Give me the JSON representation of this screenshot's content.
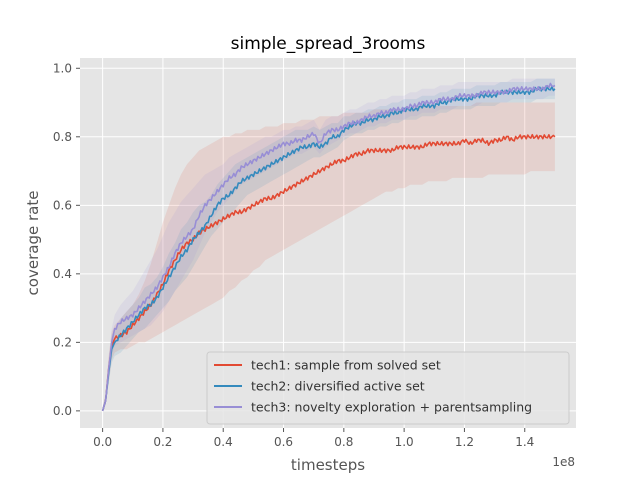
{
  "chart_data": {
    "type": "line",
    "title": "simple_spread_3rooms",
    "xlabel": "timesteps",
    "ylabel": "coverage rate",
    "x_offset_label": "1e8",
    "xlim": [
      -0.075,
      1.57
    ],
    "ylim": [
      -0.05,
      1.03
    ],
    "x_ticks": [
      0.0,
      0.2,
      0.4,
      0.6,
      0.8,
      1.0,
      1.2,
      1.4
    ],
    "x_tick_labels": [
      "0.0",
      "0.2",
      "0.4",
      "0.6",
      "0.8",
      "1.0",
      "1.2",
      "1.4"
    ],
    "y_ticks": [
      0.0,
      0.2,
      0.4,
      0.6,
      0.8,
      1.0
    ],
    "y_tick_labels": [
      "0.0",
      "0.2",
      "0.4",
      "0.6",
      "0.8",
      "1.0"
    ],
    "grid": true,
    "legend_position": "lower-right",
    "style": "ggplot",
    "series": [
      {
        "name": "tech1: sample from solved set",
        "color": "#E24A33",
        "x": [
          0.0,
          0.01,
          0.02,
          0.03,
          0.04,
          0.06,
          0.08,
          0.1,
          0.12,
          0.14,
          0.16,
          0.18,
          0.2,
          0.22,
          0.24,
          0.26,
          0.28,
          0.3,
          0.32,
          0.34,
          0.36,
          0.38,
          0.4,
          0.42,
          0.44,
          0.46,
          0.48,
          0.5,
          0.52,
          0.54,
          0.56,
          0.58,
          0.6,
          0.62,
          0.64,
          0.66,
          0.68,
          0.7,
          0.72,
          0.74,
          0.76,
          0.78,
          0.8,
          0.82,
          0.84,
          0.86,
          0.88,
          0.9,
          0.92,
          0.94,
          0.96,
          0.98,
          1.0,
          1.02,
          1.04,
          1.06,
          1.08,
          1.1,
          1.12,
          1.14,
          1.16,
          1.18,
          1.2,
          1.22,
          1.24,
          1.26,
          1.28,
          1.3,
          1.32,
          1.34,
          1.36,
          1.38,
          1.4,
          1.42,
          1.44,
          1.46,
          1.48,
          1.5
        ],
        "y": [
          0.0,
          0.03,
          0.12,
          0.19,
          0.21,
          0.22,
          0.23,
          0.25,
          0.27,
          0.29,
          0.31,
          0.34,
          0.37,
          0.41,
          0.44,
          0.47,
          0.49,
          0.5,
          0.52,
          0.53,
          0.54,
          0.55,
          0.56,
          0.57,
          0.58,
          0.58,
          0.59,
          0.6,
          0.61,
          0.62,
          0.62,
          0.63,
          0.64,
          0.65,
          0.66,
          0.67,
          0.68,
          0.69,
          0.7,
          0.71,
          0.72,
          0.73,
          0.73,
          0.74,
          0.75,
          0.75,
          0.76,
          0.76,
          0.76,
          0.76,
          0.76,
          0.77,
          0.77,
          0.77,
          0.77,
          0.77,
          0.78,
          0.78,
          0.78,
          0.78,
          0.78,
          0.78,
          0.79,
          0.78,
          0.79,
          0.79,
          0.78,
          0.79,
          0.79,
          0.8,
          0.79,
          0.8,
          0.8,
          0.8,
          0.8,
          0.8,
          0.8,
          0.8
        ],
        "band": {
          "lower": [
            0.0,
            0.02,
            0.08,
            0.15,
            0.17,
            0.18,
            0.18,
            0.19,
            0.2,
            0.2,
            0.21,
            0.22,
            0.23,
            0.24,
            0.25,
            0.26,
            0.27,
            0.28,
            0.29,
            0.3,
            0.31,
            0.32,
            0.33,
            0.35,
            0.36,
            0.38,
            0.39,
            0.41,
            0.42,
            0.44,
            0.45,
            0.46,
            0.47,
            0.48,
            0.49,
            0.5,
            0.51,
            0.52,
            0.53,
            0.54,
            0.55,
            0.56,
            0.57,
            0.58,
            0.59,
            0.6,
            0.61,
            0.62,
            0.63,
            0.64,
            0.64,
            0.65,
            0.65,
            0.66,
            0.66,
            0.66,
            0.67,
            0.67,
            0.67,
            0.67,
            0.68,
            0.68,
            0.68,
            0.68,
            0.68,
            0.68,
            0.69,
            0.69,
            0.69,
            0.69,
            0.69,
            0.69,
            0.69,
            0.7,
            0.7,
            0.7,
            0.7,
            0.7
          ],
          "upper": [
            0.01,
            0.05,
            0.16,
            0.23,
            0.25,
            0.27,
            0.29,
            0.31,
            0.34,
            0.38,
            0.43,
            0.49,
            0.55,
            0.6,
            0.65,
            0.69,
            0.72,
            0.74,
            0.76,
            0.77,
            0.78,
            0.79,
            0.8,
            0.8,
            0.81,
            0.81,
            0.82,
            0.82,
            0.82,
            0.83,
            0.83,
            0.83,
            0.84,
            0.84,
            0.84,
            0.85,
            0.85,
            0.85,
            0.86,
            0.86,
            0.86,
            0.86,
            0.87,
            0.87,
            0.87,
            0.87,
            0.87,
            0.88,
            0.88,
            0.88,
            0.88,
            0.88,
            0.88,
            0.88,
            0.89,
            0.89,
            0.89,
            0.89,
            0.89,
            0.89,
            0.89,
            0.89,
            0.89,
            0.89,
            0.9,
            0.9,
            0.9,
            0.9,
            0.9,
            0.9,
            0.9,
            0.9,
            0.9,
            0.9,
            0.9,
            0.9,
            0.9,
            0.9
          ]
        }
      },
      {
        "name": "tech2: diversified active set",
        "color": "#348ABD",
        "x": [
          0.0,
          0.01,
          0.02,
          0.03,
          0.04,
          0.06,
          0.08,
          0.1,
          0.12,
          0.14,
          0.16,
          0.18,
          0.2,
          0.22,
          0.24,
          0.26,
          0.28,
          0.3,
          0.32,
          0.34,
          0.36,
          0.38,
          0.4,
          0.42,
          0.44,
          0.46,
          0.48,
          0.5,
          0.52,
          0.54,
          0.56,
          0.58,
          0.6,
          0.62,
          0.64,
          0.66,
          0.68,
          0.7,
          0.72,
          0.74,
          0.76,
          0.78,
          0.8,
          0.82,
          0.84,
          0.86,
          0.88,
          0.9,
          0.92,
          0.94,
          0.96,
          0.98,
          1.0,
          1.02,
          1.04,
          1.06,
          1.08,
          1.1,
          1.12,
          1.14,
          1.16,
          1.18,
          1.2,
          1.22,
          1.24,
          1.26,
          1.28,
          1.3,
          1.32,
          1.34,
          1.36,
          1.38,
          1.4,
          1.42,
          1.44,
          1.46,
          1.48,
          1.5
        ],
        "y": [
          0.0,
          0.03,
          0.11,
          0.18,
          0.2,
          0.22,
          0.24,
          0.26,
          0.28,
          0.3,
          0.31,
          0.33,
          0.36,
          0.39,
          0.42,
          0.45,
          0.47,
          0.5,
          0.52,
          0.54,
          0.57,
          0.6,
          0.62,
          0.63,
          0.65,
          0.67,
          0.68,
          0.69,
          0.7,
          0.71,
          0.72,
          0.73,
          0.74,
          0.75,
          0.76,
          0.77,
          0.77,
          0.78,
          0.77,
          0.78,
          0.8,
          0.8,
          0.82,
          0.83,
          0.84,
          0.84,
          0.85,
          0.85,
          0.86,
          0.86,
          0.87,
          0.87,
          0.88,
          0.88,
          0.88,
          0.89,
          0.89,
          0.89,
          0.9,
          0.9,
          0.91,
          0.91,
          0.91,
          0.91,
          0.92,
          0.92,
          0.92,
          0.92,
          0.93,
          0.93,
          0.93,
          0.93,
          0.93,
          0.93,
          0.94,
          0.94,
          0.94,
          0.94
        ],
        "band": {
          "lower": [
            0.0,
            0.02,
            0.08,
            0.14,
            0.16,
            0.17,
            0.19,
            0.21,
            0.23,
            0.24,
            0.26,
            0.28,
            0.3,
            0.32,
            0.35,
            0.37,
            0.39,
            0.42,
            0.45,
            0.48,
            0.51,
            0.53,
            0.55,
            0.57,
            0.59,
            0.61,
            0.63,
            0.64,
            0.65,
            0.66,
            0.67,
            0.68,
            0.69,
            0.7,
            0.71,
            0.72,
            0.73,
            0.74,
            0.74,
            0.75,
            0.76,
            0.77,
            0.79,
            0.8,
            0.81,
            0.81,
            0.82,
            0.82,
            0.83,
            0.83,
            0.84,
            0.84,
            0.85,
            0.85,
            0.85,
            0.86,
            0.86,
            0.86,
            0.87,
            0.87,
            0.88,
            0.88,
            0.88,
            0.88,
            0.89,
            0.89,
            0.89,
            0.89,
            0.9,
            0.9,
            0.9,
            0.9,
            0.9,
            0.9,
            0.91,
            0.91,
            0.91,
            0.91
          ],
          "upper": [
            0.01,
            0.04,
            0.14,
            0.22,
            0.24,
            0.27,
            0.29,
            0.31,
            0.33,
            0.36,
            0.37,
            0.39,
            0.42,
            0.46,
            0.49,
            0.53,
            0.55,
            0.58,
            0.6,
            0.61,
            0.63,
            0.66,
            0.68,
            0.7,
            0.72,
            0.73,
            0.74,
            0.75,
            0.76,
            0.77,
            0.78,
            0.79,
            0.8,
            0.81,
            0.82,
            0.82,
            0.82,
            0.83,
            0.82,
            0.83,
            0.84,
            0.84,
            0.86,
            0.86,
            0.87,
            0.87,
            0.88,
            0.88,
            0.89,
            0.89,
            0.9,
            0.9,
            0.91,
            0.91,
            0.91,
            0.92,
            0.92,
            0.92,
            0.93,
            0.93,
            0.94,
            0.94,
            0.94,
            0.94,
            0.95,
            0.95,
            0.95,
            0.95,
            0.96,
            0.96,
            0.96,
            0.96,
            0.96,
            0.96,
            0.97,
            0.97,
            0.97,
            0.97
          ]
        }
      },
      {
        "name": "tech3: novelty exploration + parentsampling",
        "color": "#988ED5",
        "x": [
          0.0,
          0.01,
          0.02,
          0.03,
          0.04,
          0.06,
          0.08,
          0.1,
          0.12,
          0.14,
          0.16,
          0.18,
          0.2,
          0.22,
          0.24,
          0.26,
          0.28,
          0.3,
          0.32,
          0.34,
          0.36,
          0.38,
          0.4,
          0.42,
          0.44,
          0.46,
          0.48,
          0.5,
          0.52,
          0.54,
          0.56,
          0.58,
          0.6,
          0.62,
          0.64,
          0.66,
          0.68,
          0.7,
          0.72,
          0.74,
          0.76,
          0.78,
          0.8,
          0.82,
          0.84,
          0.86,
          0.88,
          0.9,
          0.92,
          0.94,
          0.96,
          0.98,
          1.0,
          1.02,
          1.04,
          1.06,
          1.08,
          1.1,
          1.12,
          1.14,
          1.16,
          1.18,
          1.2,
          1.22,
          1.24,
          1.26,
          1.28,
          1.3,
          1.32,
          1.34,
          1.36,
          1.38,
          1.4,
          1.42,
          1.44,
          1.46,
          1.48,
          1.5
        ],
        "y": [
          0.0,
          0.03,
          0.12,
          0.2,
          0.24,
          0.26,
          0.27,
          0.28,
          0.3,
          0.32,
          0.34,
          0.36,
          0.39,
          0.42,
          0.46,
          0.49,
          0.51,
          0.53,
          0.57,
          0.6,
          0.62,
          0.64,
          0.66,
          0.68,
          0.69,
          0.71,
          0.72,
          0.73,
          0.74,
          0.75,
          0.76,
          0.77,
          0.78,
          0.78,
          0.79,
          0.79,
          0.8,
          0.81,
          0.78,
          0.81,
          0.82,
          0.82,
          0.83,
          0.84,
          0.84,
          0.85,
          0.86,
          0.86,
          0.87,
          0.87,
          0.88,
          0.88,
          0.88,
          0.89,
          0.89,
          0.9,
          0.9,
          0.9,
          0.91,
          0.91,
          0.91,
          0.92,
          0.92,
          0.92,
          0.92,
          0.93,
          0.93,
          0.93,
          0.93,
          0.93,
          0.94,
          0.94,
          0.94,
          0.94,
          0.94,
          0.94,
          0.95,
          0.95
        ],
        "band": {
          "lower": [
            0.0,
            0.02,
            0.09,
            0.16,
            0.19,
            0.2,
            0.21,
            0.22,
            0.23,
            0.24,
            0.25,
            0.27,
            0.29,
            0.32,
            0.35,
            0.38,
            0.41,
            0.44,
            0.48,
            0.52,
            0.55,
            0.58,
            0.6,
            0.62,
            0.64,
            0.66,
            0.67,
            0.68,
            0.69,
            0.7,
            0.71,
            0.72,
            0.73,
            0.74,
            0.75,
            0.75,
            0.76,
            0.77,
            0.75,
            0.77,
            0.78,
            0.79,
            0.8,
            0.81,
            0.81,
            0.82,
            0.83,
            0.83,
            0.84,
            0.84,
            0.85,
            0.85,
            0.85,
            0.86,
            0.86,
            0.87,
            0.87,
            0.87,
            0.88,
            0.88,
            0.88,
            0.89,
            0.89,
            0.89,
            0.89,
            0.9,
            0.9,
            0.9,
            0.9,
            0.9,
            0.91,
            0.91,
            0.91,
            0.91,
            0.91,
            0.91,
            0.92,
            0.92
          ],
          "upper": [
            0.01,
            0.05,
            0.15,
            0.24,
            0.28,
            0.31,
            0.33,
            0.35,
            0.38,
            0.41,
            0.44,
            0.47,
            0.51,
            0.55,
            0.58,
            0.61,
            0.63,
            0.65,
            0.67,
            0.69,
            0.7,
            0.71,
            0.72,
            0.74,
            0.75,
            0.76,
            0.77,
            0.78,
            0.79,
            0.8,
            0.8,
            0.81,
            0.82,
            0.82,
            0.83,
            0.83,
            0.84,
            0.85,
            0.82,
            0.85,
            0.86,
            0.86,
            0.87,
            0.88,
            0.88,
            0.89,
            0.9,
            0.9,
            0.91,
            0.91,
            0.92,
            0.92,
            0.92,
            0.93,
            0.93,
            0.94,
            0.94,
            0.94,
            0.95,
            0.95,
            0.95,
            0.96,
            0.96,
            0.96,
            0.96,
            0.96,
            0.96,
            0.96,
            0.96,
            0.96,
            0.97,
            0.97,
            0.97,
            0.97,
            0.97,
            0.97,
            0.97,
            0.97
          ]
        }
      }
    ]
  },
  "colors": {
    "figure_bg": "#FFFFFF",
    "axes_bg": "#E5E5E5",
    "grid": "#FFFFFF",
    "text": "#555555",
    "title": "#000000"
  }
}
